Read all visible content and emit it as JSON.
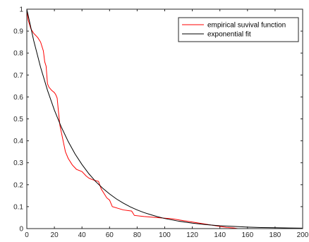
{
  "chart_data": {
    "type": "line",
    "title": "",
    "xlabel": "",
    "ylabel": "",
    "xlim": [
      0,
      200
    ],
    "ylim": [
      0,
      1
    ],
    "xticks": [
      0,
      20,
      40,
      60,
      80,
      100,
      120,
      140,
      160,
      180,
      200
    ],
    "yticks": [
      0,
      0.1,
      0.2,
      0.3,
      0.4,
      0.5,
      0.6,
      0.7,
      0.8,
      0.9,
      1
    ],
    "grid": false,
    "legend_position": "top-right",
    "series": [
      {
        "name": "empirical suvival function",
        "color": "#ff0000",
        "x": [
          0,
          1,
          2,
          3,
          5,
          8,
          10,
          12,
          13,
          14,
          15,
          16,
          18,
          20,
          21,
          22,
          23,
          24,
          25,
          26,
          27,
          28,
          30,
          33,
          36,
          40,
          43,
          45,
          48,
          52,
          54,
          56,
          58,
          60,
          62,
          70,
          76,
          78,
          85,
          95,
          105,
          115,
          125,
          135,
          140,
          145,
          150,
          153
        ],
        "values": [
          1.0,
          0.95,
          0.93,
          0.91,
          0.89,
          0.87,
          0.85,
          0.81,
          0.76,
          0.74,
          0.66,
          0.645,
          0.63,
          0.62,
          0.61,
          0.595,
          0.53,
          0.47,
          0.44,
          0.41,
          0.38,
          0.35,
          0.32,
          0.29,
          0.27,
          0.26,
          0.24,
          0.23,
          0.222,
          0.215,
          0.18,
          0.16,
          0.14,
          0.13,
          0.1,
          0.085,
          0.08,
          0.06,
          0.055,
          0.05,
          0.045,
          0.035,
          0.025,
          0.015,
          0.01,
          0.005,
          0.003,
          0.0
        ]
      },
      {
        "name": "exponential fit",
        "color": "#000000",
        "x": [
          0,
          5,
          10,
          15,
          20,
          25,
          30,
          35,
          40,
          45,
          50,
          55,
          60,
          65,
          70,
          75,
          80,
          85,
          90,
          95,
          100,
          110,
          120,
          130,
          140,
          150,
          160,
          170,
          180,
          190,
          200
        ],
        "values": [
          1.0,
          0.857,
          0.735,
          0.63,
          0.54,
          0.463,
          0.397,
          0.34,
          0.292,
          0.25,
          0.214,
          0.184,
          0.158,
          0.135,
          0.116,
          0.099,
          0.085,
          0.073,
          0.063,
          0.054,
          0.046,
          0.034,
          0.025,
          0.018,
          0.013,
          0.01,
          0.007,
          0.005,
          0.004,
          0.003,
          0.002
        ]
      }
    ]
  }
}
